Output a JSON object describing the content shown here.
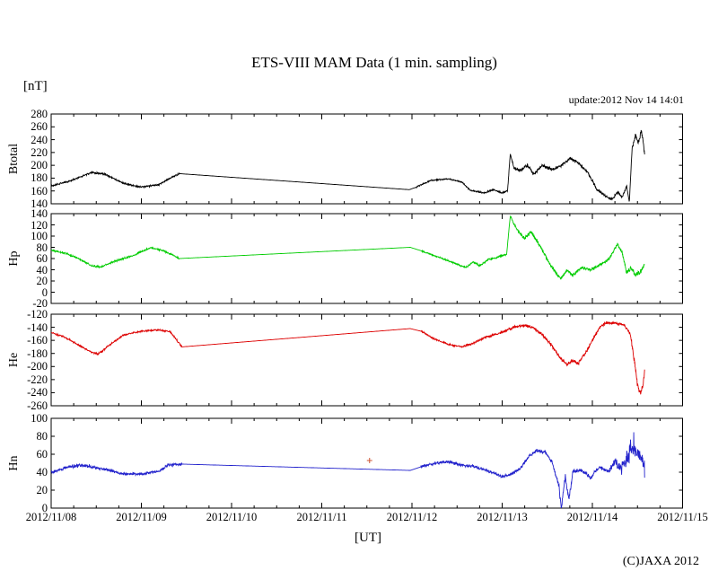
{
  "title": "ETS-VIII MAM Data (1 min. sampling)",
  "unit_label": "[nT]",
  "update_text": "update:2012 Nov 14 14:01",
  "xaxis_label": "[UT]",
  "copyright": "(C)JAXA 2012",
  "chart_data": {
    "type": "line",
    "title": "ETS-VIII MAM Data (1 min. sampling)",
    "ylabel_unit": "[nT]",
    "xlabel": "[UT]",
    "xlim_days": [
      0,
      7
    ],
    "x_tick_labels": [
      "2012/11/08",
      "2012/11/09",
      "2012/11/10",
      "2012/11/11",
      "2012/11/12",
      "2012/11/13",
      "2012/11/14",
      "2012/11/15"
    ],
    "minor_tick_days": 0.25,
    "grid": "off",
    "data_end_day": 6.58,
    "panels": [
      {
        "label": "Btotal",
        "color": "#000000",
        "ymax": 280,
        "ymin": 140,
        "yticks": [
          280,
          260,
          240,
          220,
          200,
          180,
          160,
          140
        ],
        "anchors": [
          [
            0,
            168,
            1.5
          ],
          [
            0.2,
            175,
            1.5
          ],
          [
            0.45,
            189,
            1.5
          ],
          [
            0.6,
            186,
            1.5
          ],
          [
            0.8,
            172,
            1.5
          ],
          [
            1.0,
            166,
            1.5
          ],
          [
            1.2,
            170,
            1.5
          ],
          [
            1.33,
            181,
            1.5
          ],
          [
            1.42,
            187,
            0
          ],
          [
            3.97,
            162,
            0
          ],
          [
            4.05,
            166,
            1.2
          ],
          [
            4.2,
            176,
            1.2
          ],
          [
            4.4,
            179,
            1.2
          ],
          [
            4.55,
            174,
            1.5
          ],
          [
            4.65,
            161,
            1.5
          ],
          [
            4.8,
            157,
            1.5
          ],
          [
            4.9,
            162,
            1.5
          ],
          [
            5.0,
            157,
            1.5
          ],
          [
            5.06,
            160,
            2
          ],
          [
            5.09,
            218,
            2
          ],
          [
            5.13,
            196,
            2.5
          ],
          [
            5.2,
            192,
            3
          ],
          [
            5.28,
            200,
            3
          ],
          [
            5.35,
            186,
            3
          ],
          [
            5.45,
            200,
            3
          ],
          [
            5.55,
            193,
            3
          ],
          [
            5.65,
            199,
            3
          ],
          [
            5.75,
            211,
            3
          ],
          [
            5.85,
            203,
            3
          ],
          [
            5.95,
            188,
            3
          ],
          [
            6.05,
            163,
            2.5
          ],
          [
            6.15,
            151,
            2.5
          ],
          [
            6.22,
            147,
            2.5
          ],
          [
            6.28,
            158,
            2.5
          ],
          [
            6.33,
            150,
            2.5
          ],
          [
            6.38,
            168,
            3
          ],
          [
            6.41,
            143,
            3
          ],
          [
            6.44,
            225,
            4
          ],
          [
            6.48,
            248,
            4
          ],
          [
            6.51,
            235,
            4
          ],
          [
            6.54,
            252,
            4
          ],
          [
            6.56,
            242,
            4
          ],
          [
            6.58,
            215,
            3
          ]
        ]
      },
      {
        "label": "Hp",
        "color": "#00cc00",
        "ymax": 140,
        "ymin": -20,
        "yticks": [
          140,
          120,
          100,
          80,
          60,
          40,
          20,
          0,
          -20
        ],
        "anchors": [
          [
            0,
            75,
            2
          ],
          [
            0.15,
            70,
            2
          ],
          [
            0.3,
            60,
            2
          ],
          [
            0.45,
            47,
            2
          ],
          [
            0.55,
            45,
            2
          ],
          [
            0.7,
            55,
            2
          ],
          [
            0.9,
            65,
            2
          ],
          [
            1.1,
            79,
            2
          ],
          [
            1.25,
            74,
            2
          ],
          [
            1.42,
            60,
            0
          ],
          [
            3.98,
            80,
            0
          ],
          [
            4.1,
            74,
            1.5
          ],
          [
            4.3,
            62,
            1.5
          ],
          [
            4.5,
            50,
            2
          ],
          [
            4.6,
            44,
            2
          ],
          [
            4.68,
            54,
            2
          ],
          [
            4.75,
            47,
            2
          ],
          [
            4.85,
            58,
            2
          ],
          [
            4.95,
            62,
            2
          ],
          [
            5.05,
            68,
            2
          ],
          [
            5.09,
            136,
            3
          ],
          [
            5.12,
            125,
            3
          ],
          [
            5.18,
            108,
            4
          ],
          [
            5.25,
            96,
            4
          ],
          [
            5.32,
            108,
            4
          ],
          [
            5.4,
            88,
            4
          ],
          [
            5.5,
            58,
            4
          ],
          [
            5.58,
            38,
            4
          ],
          [
            5.65,
            24,
            3
          ],
          [
            5.72,
            40,
            3
          ],
          [
            5.78,
            30,
            3
          ],
          [
            5.88,
            44,
            3
          ],
          [
            5.98,
            40,
            3
          ],
          [
            6.08,
            48,
            3
          ],
          [
            6.18,
            58,
            3
          ],
          [
            6.28,
            86,
            3
          ],
          [
            6.33,
            70,
            4
          ],
          [
            6.38,
            34,
            5
          ],
          [
            6.43,
            44,
            5
          ],
          [
            6.48,
            30,
            5
          ],
          [
            6.53,
            36,
            5
          ],
          [
            6.58,
            52,
            4
          ]
        ]
      },
      {
        "label": "He",
        "color": "#dd0000",
        "ymax": -120,
        "ymin": -260,
        "yticks": [
          -120,
          -140,
          -160,
          -180,
          -200,
          -220,
          -240,
          -260
        ],
        "anchors": [
          [
            0,
            -148,
            1.5
          ],
          [
            0.15,
            -155,
            1.5
          ],
          [
            0.3,
            -167,
            1.5
          ],
          [
            0.45,
            -178,
            2
          ],
          [
            0.52,
            -181,
            2
          ],
          [
            0.62,
            -170,
            1.5
          ],
          [
            0.8,
            -152,
            1.5
          ],
          [
            1.0,
            -146,
            1.5
          ],
          [
            1.2,
            -144,
            1.5
          ],
          [
            1.32,
            -147,
            1.5
          ],
          [
            1.45,
            -170,
            0
          ],
          [
            3.98,
            -142,
            0
          ],
          [
            4.1,
            -146,
            1.5
          ],
          [
            4.25,
            -158,
            1.5
          ],
          [
            4.4,
            -166,
            1.5
          ],
          [
            4.55,
            -170,
            2
          ],
          [
            4.65,
            -166,
            2
          ],
          [
            4.8,
            -156,
            2
          ],
          [
            4.95,
            -150,
            2
          ],
          [
            5.05,
            -145,
            2.5
          ],
          [
            5.15,
            -139,
            2.5
          ],
          [
            5.25,
            -137,
            2.5
          ],
          [
            5.35,
            -141,
            2.5
          ],
          [
            5.45,
            -152,
            3
          ],
          [
            5.55,
            -168,
            3
          ],
          [
            5.65,
            -188,
            3
          ],
          [
            5.72,
            -197,
            3
          ],
          [
            5.78,
            -190,
            3
          ],
          [
            5.84,
            -196,
            3
          ],
          [
            5.92,
            -180,
            3
          ],
          [
            6.0,
            -160,
            3
          ],
          [
            6.08,
            -140,
            3
          ],
          [
            6.15,
            -133,
            2.5
          ],
          [
            6.25,
            -134,
            2.5
          ],
          [
            6.35,
            -136,
            3
          ],
          [
            6.42,
            -150,
            4
          ],
          [
            6.46,
            -185,
            5
          ],
          [
            6.5,
            -228,
            6
          ],
          [
            6.53,
            -240,
            6
          ],
          [
            6.56,
            -230,
            6
          ],
          [
            6.58,
            -205,
            5
          ]
        ]
      },
      {
        "label": "Hn",
        "color": "#2222cc",
        "ymax": 100,
        "ymin": 0,
        "yticks": [
          100,
          80,
          60,
          40,
          20,
          0
        ],
        "marker": {
          "day": 3.53,
          "value": 53,
          "color": "#cc5533",
          "symbol": "+"
        },
        "anchors": [
          [
            0,
            40,
            2
          ],
          [
            0.2,
            46,
            2.5
          ],
          [
            0.35,
            48,
            2.5
          ],
          [
            0.5,
            45,
            2
          ],
          [
            0.65,
            42,
            2
          ],
          [
            0.8,
            38,
            2
          ],
          [
            1.0,
            38,
            2
          ],
          [
            1.2,
            41,
            2
          ],
          [
            1.3,
            48,
            2
          ],
          [
            1.45,
            49,
            0
          ],
          [
            3.98,
            42,
            0
          ],
          [
            4.1,
            46,
            2
          ],
          [
            4.25,
            50,
            2
          ],
          [
            4.4,
            52,
            2
          ],
          [
            4.55,
            48,
            2
          ],
          [
            4.7,
            46,
            2
          ],
          [
            4.85,
            41,
            2
          ],
          [
            5.0,
            35,
            2
          ],
          [
            5.1,
            38,
            2
          ],
          [
            5.2,
            44,
            2
          ],
          [
            5.3,
            58,
            2.5
          ],
          [
            5.38,
            64,
            2.5
          ],
          [
            5.48,
            62,
            2.5
          ],
          [
            5.55,
            52,
            3
          ],
          [
            5.62,
            28,
            6
          ],
          [
            5.66,
            2,
            4
          ],
          [
            5.7,
            36,
            4
          ],
          [
            5.74,
            8,
            5
          ],
          [
            5.78,
            40,
            3
          ],
          [
            5.88,
            42,
            2.5
          ],
          [
            5.98,
            34,
            2.5
          ],
          [
            6.08,
            46,
            3
          ],
          [
            6.18,
            40,
            4
          ],
          [
            6.25,
            52,
            8
          ],
          [
            6.32,
            45,
            10
          ],
          [
            6.38,
            55,
            12
          ],
          [
            6.43,
            68,
            10
          ],
          [
            6.48,
            62,
            9
          ],
          [
            6.53,
            58,
            8
          ],
          [
            6.58,
            50,
            5
          ]
        ]
      }
    ]
  }
}
